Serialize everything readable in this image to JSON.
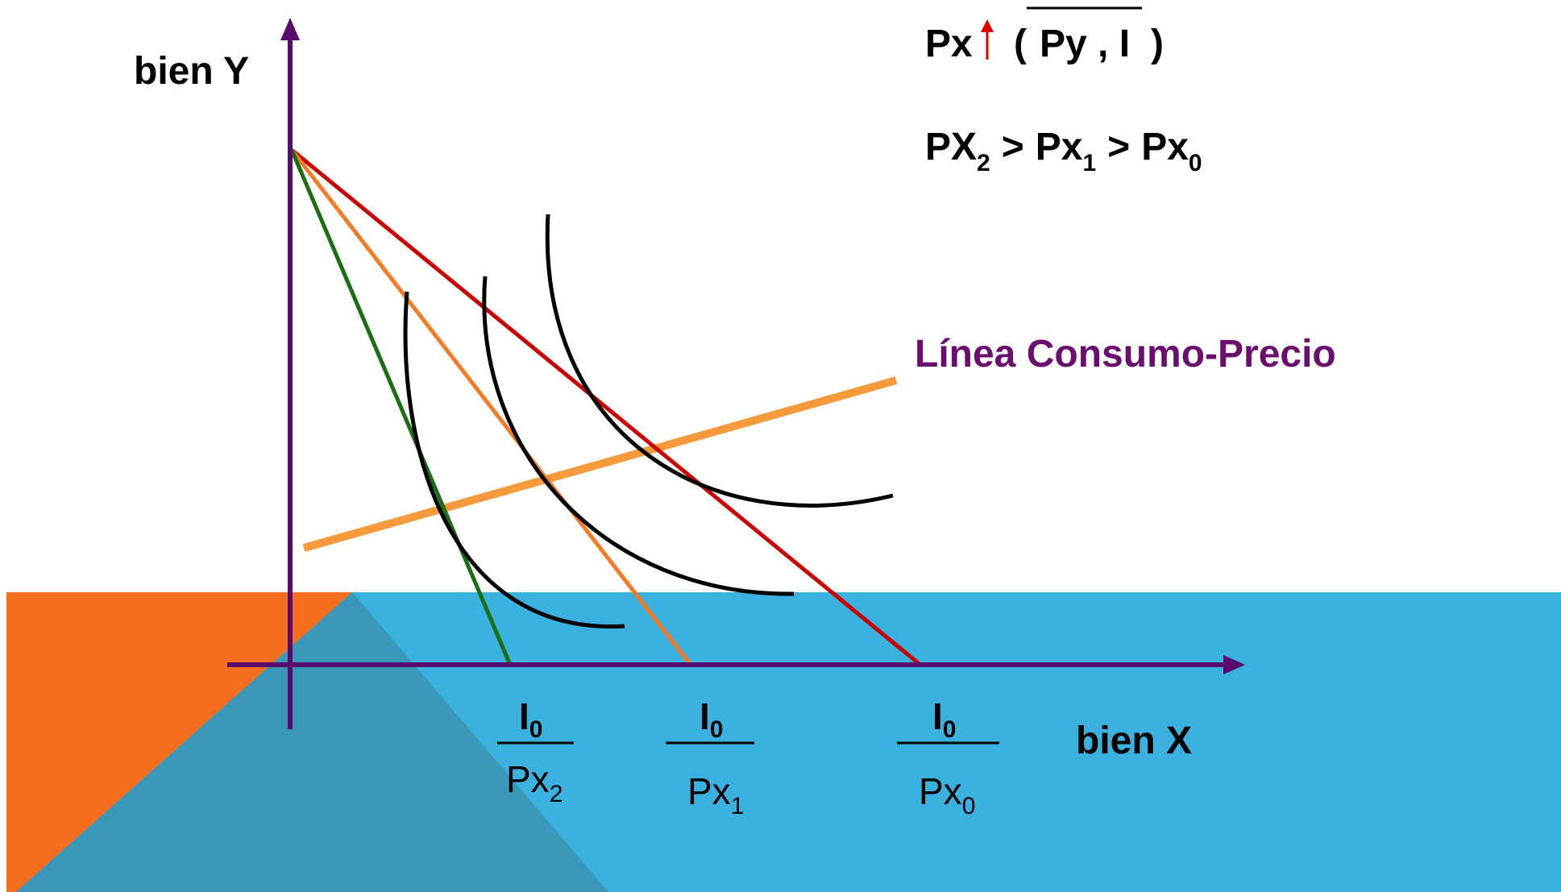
{
  "axes": {
    "y_label": "bien Y",
    "x_label": "bien X"
  },
  "header": {
    "line1_prefix": "Px",
    "line1_open": "(",
    "line1_fixed": "Py , I",
    "line1_close": ")",
    "line2_p2": "PX",
    "line2_s2": "2",
    "line2_gt1": ">",
    "line2_p1": "Px",
    "line2_s1": "1",
    "line2_gt2": ">",
    "line2_p0": "Px",
    "line2_s0": "0"
  },
  "consumption_line_label": "Línea Consumo-Precio",
  "intercepts": [
    {
      "num": "I",
      "num_sub": "0",
      "den": "Px",
      "den_sub": "2"
    },
    {
      "num": "I",
      "num_sub": "0",
      "den": "Px",
      "den_sub": "1"
    },
    {
      "num": "I",
      "num_sub": "0",
      "den": "Px",
      "den_sub": "0"
    }
  ],
  "colors": {
    "axis": "#5a0a6e",
    "budget_px2": "#1a6e14",
    "budget_px1": "#f47b25",
    "budget_px0": "#cc0000",
    "indifference": "#000000",
    "consumption_line": "#f79a3c",
    "consumption_label": "#6a0d6e",
    "arrow_up": "#e00000",
    "bg_blue": "#3ab1df",
    "bg_orange": "#f56d1e",
    "bg_teal": "#3a97b7"
  }
}
